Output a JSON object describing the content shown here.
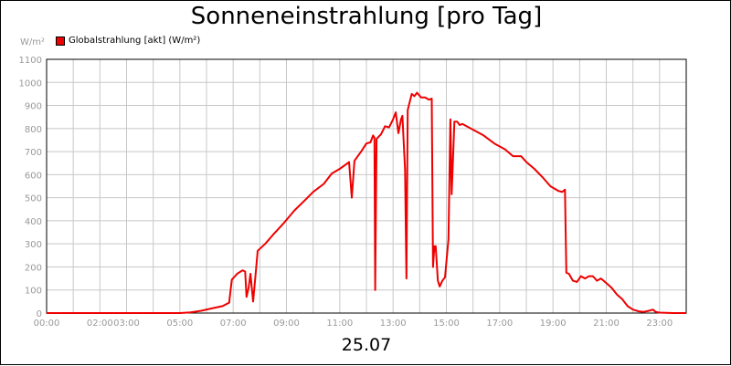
{
  "header": {
    "title": "Sonneneinstrahlung [pro Tag]"
  },
  "footer": {
    "date": "25.07"
  },
  "colors": {
    "series": "#ee0000",
    "grid": "#c8c8c8",
    "axis_text": "#999999"
  },
  "chart_data": {
    "type": "line",
    "title": "Sonneneinstrahlung [pro Tag]",
    "ylabel": "W/m²",
    "xlabel": "25.07",
    "xlim": [
      0,
      24
    ],
    "ylim": [
      0,
      1100
    ],
    "grid": true,
    "legend_position": "top-left",
    "yticks": [
      0,
      100,
      200,
      300,
      400,
      500,
      600,
      700,
      800,
      900,
      1000,
      1100
    ],
    "xticks": [
      {
        "hour": 0,
        "label": "00:00"
      },
      {
        "hour": 2,
        "label": "02:00"
      },
      {
        "hour": 3,
        "label": "03:00"
      },
      {
        "hour": 5,
        "label": "05:00"
      },
      {
        "hour": 7,
        "label": "07:00"
      },
      {
        "hour": 9,
        "label": "09:00"
      },
      {
        "hour": 11,
        "label": "11:00"
      },
      {
        "hour": 13,
        "label": "13:00"
      },
      {
        "hour": 15,
        "label": "15:00"
      },
      {
        "hour": 17,
        "label": "17:00"
      },
      {
        "hour": 19,
        "label": "19:00"
      },
      {
        "hour": 21,
        "label": "21:00"
      },
      {
        "hour": 23,
        "label": "23:00"
      }
    ],
    "series": [
      {
        "name": "Globalstrahlung [akt] (W/m²)",
        "color": "#ee0000",
        "points": [
          [
            0,
            0
          ],
          [
            5.0,
            0
          ],
          [
            5.4,
            3
          ],
          [
            5.8,
            10
          ],
          [
            6.2,
            20
          ],
          [
            6.6,
            30
          ],
          [
            6.85,
            45
          ],
          [
            6.95,
            145
          ],
          [
            7.15,
            170
          ],
          [
            7.35,
            185
          ],
          [
            7.45,
            180
          ],
          [
            7.5,
            70
          ],
          [
            7.58,
            110
          ],
          [
            7.65,
            170
          ],
          [
            7.75,
            50
          ],
          [
            7.85,
            180
          ],
          [
            7.92,
            270
          ],
          [
            8.2,
            300
          ],
          [
            8.5,
            340
          ],
          [
            8.9,
            390
          ],
          [
            9.3,
            445
          ],
          [
            9.7,
            490
          ],
          [
            10.0,
            525
          ],
          [
            10.4,
            560
          ],
          [
            10.7,
            605
          ],
          [
            11.0,
            625
          ],
          [
            11.3,
            650
          ],
          [
            11.35,
            655
          ],
          [
            11.45,
            500
          ],
          [
            11.55,
            660
          ],
          [
            11.8,
            700
          ],
          [
            12.0,
            735
          ],
          [
            12.15,
            740
          ],
          [
            12.25,
            770
          ],
          [
            12.3,
            760
          ],
          [
            12.33,
            100
          ],
          [
            12.38,
            755
          ],
          [
            12.55,
            775
          ],
          [
            12.7,
            810
          ],
          [
            12.85,
            805
          ],
          [
            13.0,
            840
          ],
          [
            13.1,
            870
          ],
          [
            13.2,
            780
          ],
          [
            13.3,
            840
          ],
          [
            13.35,
            855
          ],
          [
            13.45,
            620
          ],
          [
            13.5,
            150
          ],
          [
            13.55,
            880
          ],
          [
            13.7,
            950
          ],
          [
            13.8,
            940
          ],
          [
            13.9,
            955
          ],
          [
            14.05,
            935
          ],
          [
            14.2,
            935
          ],
          [
            14.35,
            925
          ],
          [
            14.45,
            930
          ],
          [
            14.5,
            200
          ],
          [
            14.55,
            290
          ],
          [
            14.6,
            290
          ],
          [
            14.68,
            140
          ],
          [
            14.75,
            115
          ],
          [
            14.85,
            140
          ],
          [
            14.95,
            155
          ],
          [
            15.08,
            320
          ],
          [
            15.15,
            840
          ],
          [
            15.2,
            515
          ],
          [
            15.3,
            830
          ],
          [
            15.4,
            830
          ],
          [
            15.5,
            815
          ],
          [
            15.6,
            820
          ],
          [
            16.0,
            795
          ],
          [
            16.4,
            770
          ],
          [
            16.8,
            735
          ],
          [
            17.2,
            710
          ],
          [
            17.5,
            680
          ],
          [
            17.8,
            680
          ],
          [
            18.0,
            655
          ],
          [
            18.3,
            625
          ],
          [
            18.6,
            590
          ],
          [
            18.9,
            550
          ],
          [
            19.2,
            530
          ],
          [
            19.35,
            525
          ],
          [
            19.45,
            535
          ],
          [
            19.5,
            175
          ],
          [
            19.6,
            170
          ],
          [
            19.75,
            140
          ],
          [
            19.9,
            135
          ],
          [
            20.05,
            160
          ],
          [
            20.2,
            150
          ],
          [
            20.35,
            160
          ],
          [
            20.5,
            160
          ],
          [
            20.65,
            140
          ],
          [
            20.8,
            150
          ],
          [
            21.0,
            130
          ],
          [
            21.2,
            110
          ],
          [
            21.4,
            80
          ],
          [
            21.6,
            60
          ],
          [
            21.8,
            30
          ],
          [
            22.0,
            15
          ],
          [
            22.2,
            8
          ],
          [
            22.4,
            5
          ],
          [
            22.6,
            10
          ],
          [
            22.75,
            15
          ],
          [
            22.85,
            5
          ],
          [
            23.0,
            2
          ],
          [
            23.5,
            0
          ],
          [
            24,
            0
          ]
        ]
      }
    ]
  }
}
